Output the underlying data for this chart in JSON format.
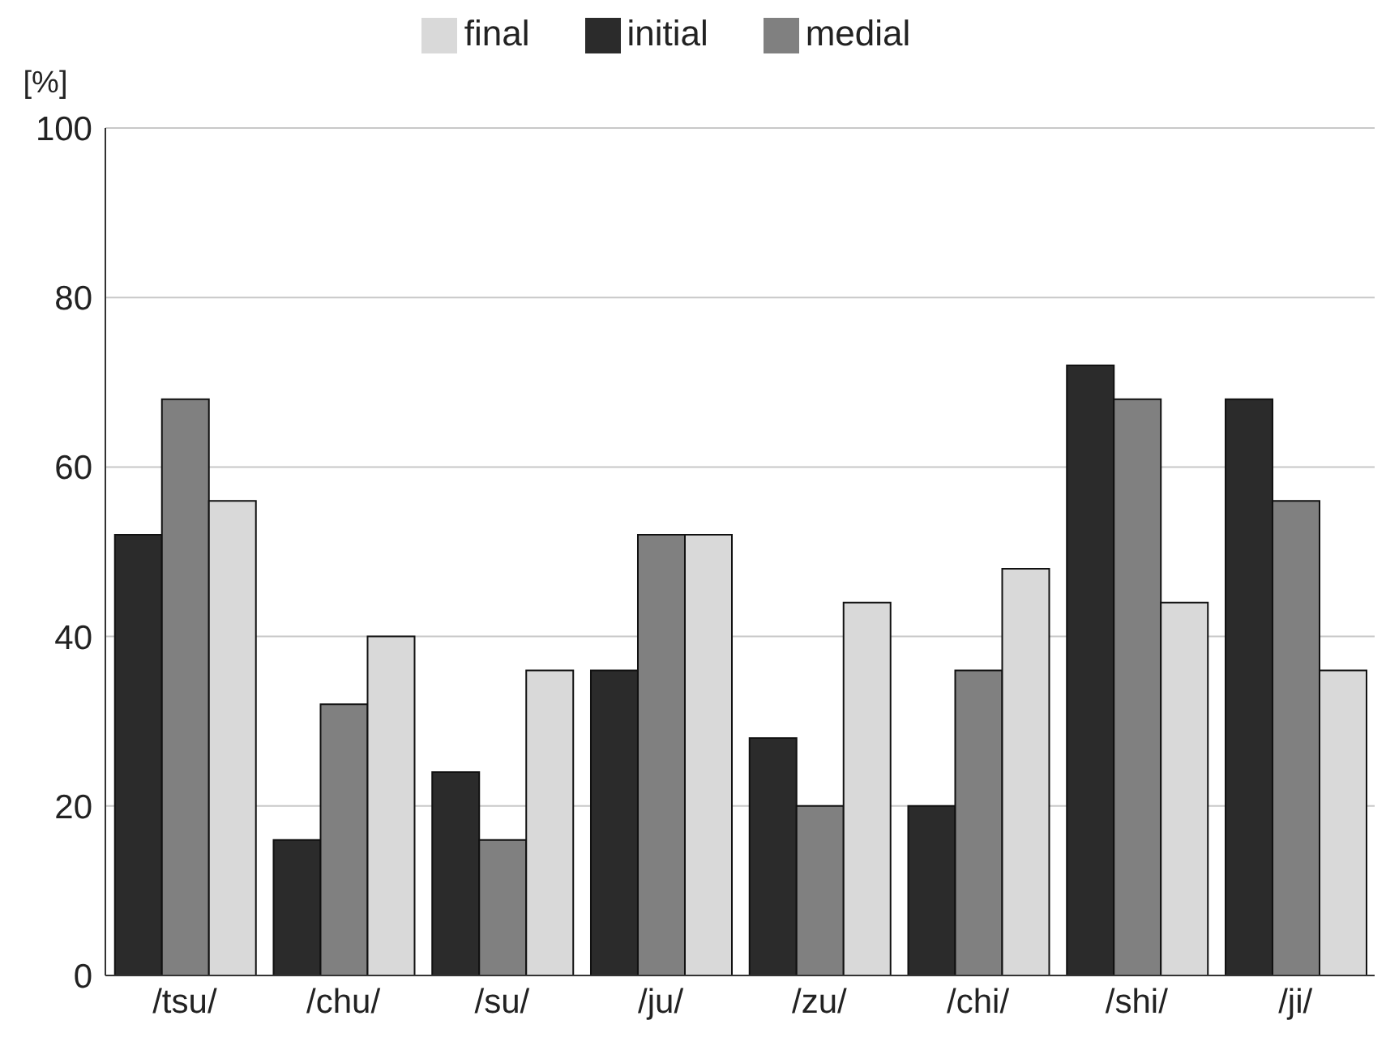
{
  "chart_data": {
    "type": "bar",
    "ylabel": "[%]",
    "categories": [
      "/tsu/",
      "/chu/",
      "/su/",
      "/ju/",
      "/zu/",
      "/chi/",
      "/shi/",
      "/ji/"
    ],
    "series": [
      {
        "name": "initial",
        "color": "#2b2b2b",
        "values": [
          52,
          16,
          24,
          36,
          28,
          20,
          72,
          68
        ]
      },
      {
        "name": "medial",
        "color": "#808080",
        "values": [
          68,
          32,
          16,
          52,
          20,
          36,
          68,
          56
        ]
      },
      {
        "name": "final",
        "color": "#d9d9d9",
        "values": [
          56,
          40,
          36,
          52,
          44,
          48,
          44,
          36
        ]
      }
    ],
    "ylim": [
      0,
      100
    ],
    "yticks": [
      0,
      20,
      40,
      60,
      80,
      100
    ],
    "grid": "y",
    "legend": "top"
  }
}
